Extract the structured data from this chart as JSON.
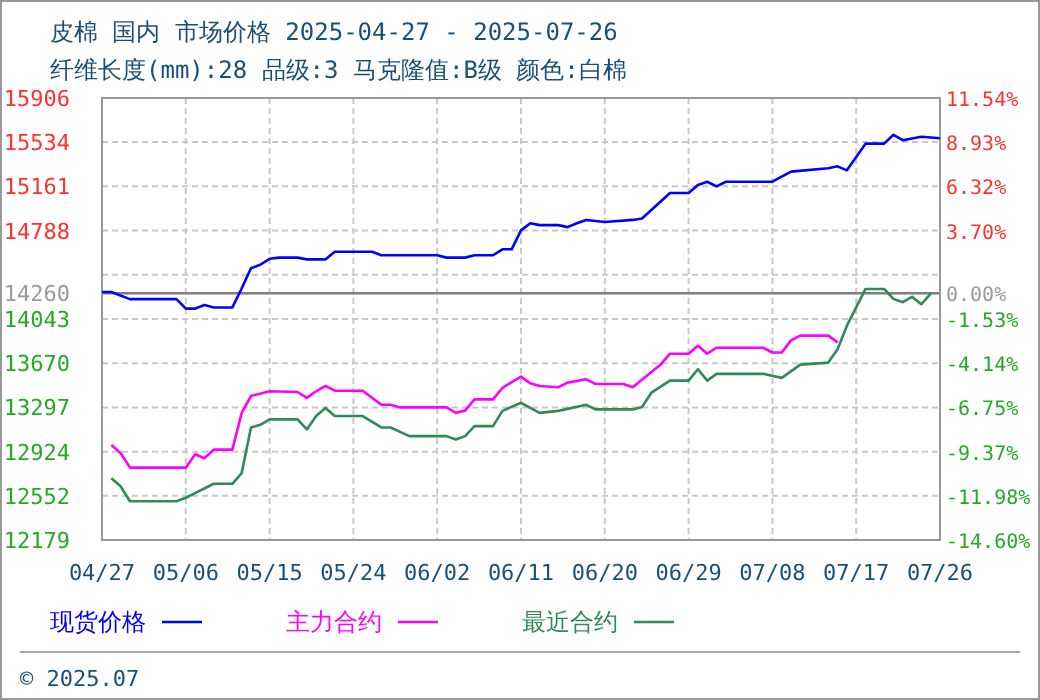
{
  "chart_data": {
    "type": "line",
    "title": "皮棉 国内 市场价格 2025-04-27 - 2025-07-26",
    "subtitle": "纤维长度(mm):28 品级:3 马克隆值:B级 颜色:白棉",
    "xlim": [
      "2025-04-27",
      "2025-07-26"
    ],
    "xticks": [
      {
        "value": "2025-04-27",
        "label": "04/27"
      },
      {
        "value": "2025-05-06",
        "label": "05/06"
      },
      {
        "value": "2025-05-15",
        "label": "05/15"
      },
      {
        "value": "2025-05-24",
        "label": "05/24"
      },
      {
        "value": "2025-06-02",
        "label": "06/02"
      },
      {
        "value": "2025-06-11",
        "label": "06/11"
      },
      {
        "value": "2025-06-20",
        "label": "06/20"
      },
      {
        "value": "2025-06-29",
        "label": "06/29"
      },
      {
        "value": "2025-07-08",
        "label": "07/08"
      },
      {
        "value": "2025-07-17",
        "label": "07/17"
      },
      {
        "value": "2025-07-26",
        "label": "07/26"
      }
    ],
    "ylim": [
      12179,
      15906
    ],
    "yticks": [
      15906,
      15534,
      15161,
      14788,
      {
        "value": 14416,
        "label": null
      },
      14260,
      14043,
      13670,
      13297,
      12924,
      12552,
      12179
    ],
    "y2lim": [
      -14.6,
      11.54
    ],
    "y2ticks": [
      {
        "value": 11.54,
        "label": "11.54%"
      },
      {
        "value": 8.93,
        "label": "8.93%"
      },
      {
        "value": 6.32,
        "label": "6.32%"
      },
      {
        "value": 3.7,
        "label": "3.70%"
      },
      {
        "value": 0,
        "label": "0.00%"
      },
      {
        "value": -1.53,
        "label": "-1.53%"
      },
      {
        "value": -4.14,
        "label": "-4.14%"
      },
      {
        "value": -6.75,
        "label": "-6.75%"
      },
      {
        "value": -9.37,
        "label": "-9.37%"
      },
      {
        "value": -11.98,
        "label": "-11.98%"
      },
      {
        "value": -14.6,
        "label": "-14.60%"
      }
    ],
    "ref_lines": [
      {
        "axis": "y",
        "value": 14260,
        "color": "#808080"
      }
    ],
    "grid": true,
    "legend": "bottom",
    "annotations": [
      "© 2025.07"
    ],
    "series": [
      {
        "name": "现货价格",
        "color": "#0000ff",
        "x": [
          "2025-04-27",
          "2025-04-28",
          "2025-04-30",
          "2025-05-05",
          "2025-05-06",
          "2025-05-07",
          "2025-05-08",
          "2025-05-09",
          "2025-05-11",
          "2025-05-12",
          "2025-05-13",
          "2025-05-14",
          "2025-05-15",
          "2025-05-16",
          "2025-05-18",
          "2025-05-19",
          "2025-05-21",
          "2025-05-22",
          "2025-05-26",
          "2025-05-27",
          "2025-06-02",
          "2025-06-03",
          "2025-06-05",
          "2025-06-06",
          "2025-06-08",
          "2025-06-09",
          "2025-06-10",
          "2025-06-11",
          "2025-06-12",
          "2025-06-13",
          "2025-06-15",
          "2025-06-16",
          "2025-06-17",
          "2025-06-18",
          "2025-06-20",
          "2025-06-23",
          "2025-06-24",
          "2025-06-27",
          "2025-06-29",
          "2025-06-30",
          "2025-07-01",
          "2025-07-02",
          "2025-07-03",
          "2025-07-08",
          "2025-07-10",
          "2025-07-14",
          "2025-07-15",
          "2025-07-16",
          "2025-07-18",
          "2025-07-20",
          "2025-07-21",
          "2025-07-22",
          "2025-07-24",
          "2025-07-26"
        ],
        "values": [
          14270,
          14270,
          14210,
          14210,
          14130,
          14130,
          14160,
          14140,
          14140,
          14300,
          14470,
          14500,
          14550,
          14560,
          14560,
          14545,
          14545,
          14610,
          14610,
          14580,
          14580,
          14560,
          14560,
          14580,
          14580,
          14630,
          14630,
          14790,
          14850,
          14834,
          14834,
          14817,
          14850,
          14878,
          14861,
          14878,
          14890,
          15105,
          15105,
          15173,
          15200,
          15161,
          15200,
          15200,
          15285,
          15313,
          15330,
          15296,
          15521,
          15521,
          15596,
          15550,
          15579,
          15567
        ]
      },
      {
        "name": "主力合约",
        "color": "#ff00ff",
        "x": [
          "2025-04-28",
          "2025-04-29",
          "2025-04-30",
          "2025-05-06",
          "2025-05-07",
          "2025-05-08",
          "2025-05-09",
          "2025-05-11",
          "2025-05-12",
          "2025-05-13",
          "2025-05-15",
          "2025-05-18",
          "2025-05-19",
          "2025-05-20",
          "2025-05-21",
          "2025-05-22",
          "2025-05-25",
          "2025-05-27",
          "2025-05-28",
          "2025-05-29",
          "2025-06-03",
          "2025-06-04",
          "2025-06-05",
          "2025-06-06",
          "2025-06-08",
          "2025-06-09",
          "2025-06-11",
          "2025-06-12",
          "2025-06-13",
          "2025-06-15",
          "2025-06-16",
          "2025-06-18",
          "2025-06-19",
          "2025-06-22",
          "2025-06-23",
          "2025-06-26",
          "2025-06-27",
          "2025-06-29",
          "2025-06-30",
          "2025-07-01",
          "2025-07-02",
          "2025-07-07",
          "2025-07-08",
          "2025-07-09",
          "2025-07-10",
          "2025-07-11",
          "2025-07-14",
          "2025-07-15"
        ],
        "values": [
          12980,
          12913,
          12789,
          12789,
          12902,
          12869,
          12941,
          12941,
          13250,
          13393,
          13433,
          13427,
          13377,
          13433,
          13478,
          13438,
          13438,
          13319,
          13319,
          13297,
          13297,
          13251,
          13270,
          13365,
          13365,
          13461,
          13557,
          13500,
          13478,
          13467,
          13506,
          13534,
          13495,
          13495,
          13467,
          13658,
          13750,
          13750,
          13817,
          13750,
          13800,
          13800,
          13760,
          13760,
          13862,
          13902,
          13902,
          13845
        ]
      },
      {
        "name": "最近合约",
        "color": "#2e8b57",
        "x": [
          "2025-04-28",
          "2025-04-29",
          "2025-04-30",
          "2025-05-05",
          "2025-05-06",
          "2025-05-07",
          "2025-05-09",
          "2025-05-11",
          "2025-05-12",
          "2025-05-13",
          "2025-05-14",
          "2025-05-15",
          "2025-05-18",
          "2025-05-19",
          "2025-05-20",
          "2025-05-21",
          "2025-05-22",
          "2025-05-25",
          "2025-05-27",
          "2025-05-28",
          "2025-05-30",
          "2025-06-03",
          "2025-06-04",
          "2025-06-05",
          "2025-06-06",
          "2025-06-08",
          "2025-06-09",
          "2025-06-11",
          "2025-06-13",
          "2025-06-15",
          "2025-06-18",
          "2025-06-19",
          "2025-06-23",
          "2025-06-24",
          "2025-06-25",
          "2025-06-27",
          "2025-06-29",
          "2025-06-30",
          "2025-07-01",
          "2025-07-02",
          "2025-07-07",
          "2025-07-09",
          "2025-07-11",
          "2025-07-14",
          "2025-07-15",
          "2025-07-16",
          "2025-07-18",
          "2025-07-20",
          "2025-07-21",
          "2025-07-22",
          "2025-07-23",
          "2025-07-24",
          "2025-07-25"
        ],
        "values": [
          12699,
          12632,
          12506,
          12506,
          12535,
          12574,
          12653,
          12653,
          12743,
          13128,
          13150,
          13196,
          13196,
          13111,
          13224,
          13292,
          13224,
          13224,
          13128,
          13128,
          13055,
          13055,
          13026,
          13055,
          13139,
          13139,
          13268,
          13336,
          13251,
          13268,
          13319,
          13280,
          13280,
          13300,
          13421,
          13523,
          13523,
          13619,
          13523,
          13580,
          13580,
          13546,
          13658,
          13675,
          13788,
          13986,
          14296,
          14296,
          14212,
          14184,
          14229,
          14167,
          14257
        ]
      }
    ]
  }
}
